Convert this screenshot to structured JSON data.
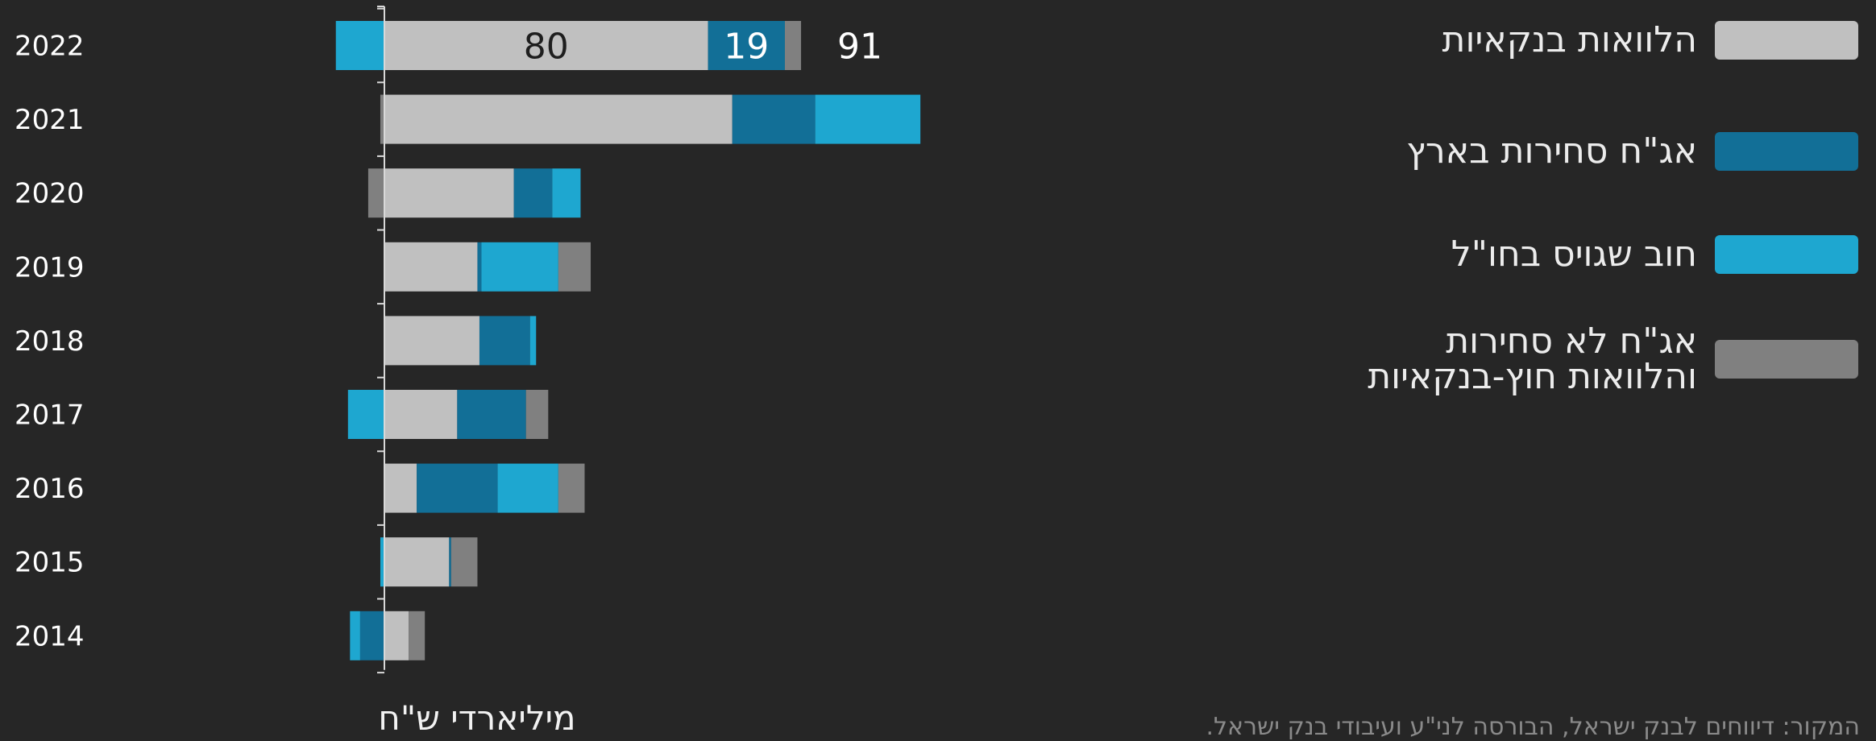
{
  "chart_data": {
    "type": "bar",
    "orientation": "horizontal",
    "stacked": true,
    "categories": [
      "2022",
      "2021",
      "2020",
      "2019",
      "2018",
      "2017",
      "2016",
      "2015",
      "2014"
    ],
    "series": [
      {
        "name": "הלוואות בנקאיות",
        "color": "#c0c0c0",
        "values": [
          80,
          86,
          32,
          23,
          23.5,
          18,
          8,
          16,
          6
        ]
      },
      {
        "name": "אג\"ח סחירות בארץ",
        "color": "#126f97",
        "values": [
          19,
          20.5,
          9.5,
          1,
          12.5,
          17,
          20,
          0.5,
          -6
        ]
      },
      {
        "name": "חוב שגויס בחו\"ל",
        "color": "#1ea7d0",
        "values": [
          -12,
          26,
          7,
          19,
          1.5,
          -9,
          15,
          -1,
          -2.5
        ]
      },
      {
        "name": "אג\"ח לא סחירות\nוהלוואות חוץ-בנקאיות",
        "color": "#808080",
        "values": [
          4,
          -1,
          -4,
          8,
          0,
          5.5,
          6.5,
          6.5,
          4
        ]
      }
    ],
    "data_labels": [
      {
        "category": "2022",
        "series": 0,
        "text": "80"
      },
      {
        "category": "2022",
        "series": 1,
        "text": "19"
      },
      {
        "category": "2022",
        "series": "total",
        "text": "91"
      }
    ],
    "xlabel": "מיליארדי ש\"ח",
    "ylabel": "",
    "xlim": [
      -14,
      134
    ],
    "grid": false,
    "legend_position": "right"
  },
  "source": "המקור: דיווחים לבנק ישראל, הבורסה לני\"ע ועיבודי בנק ישראל."
}
